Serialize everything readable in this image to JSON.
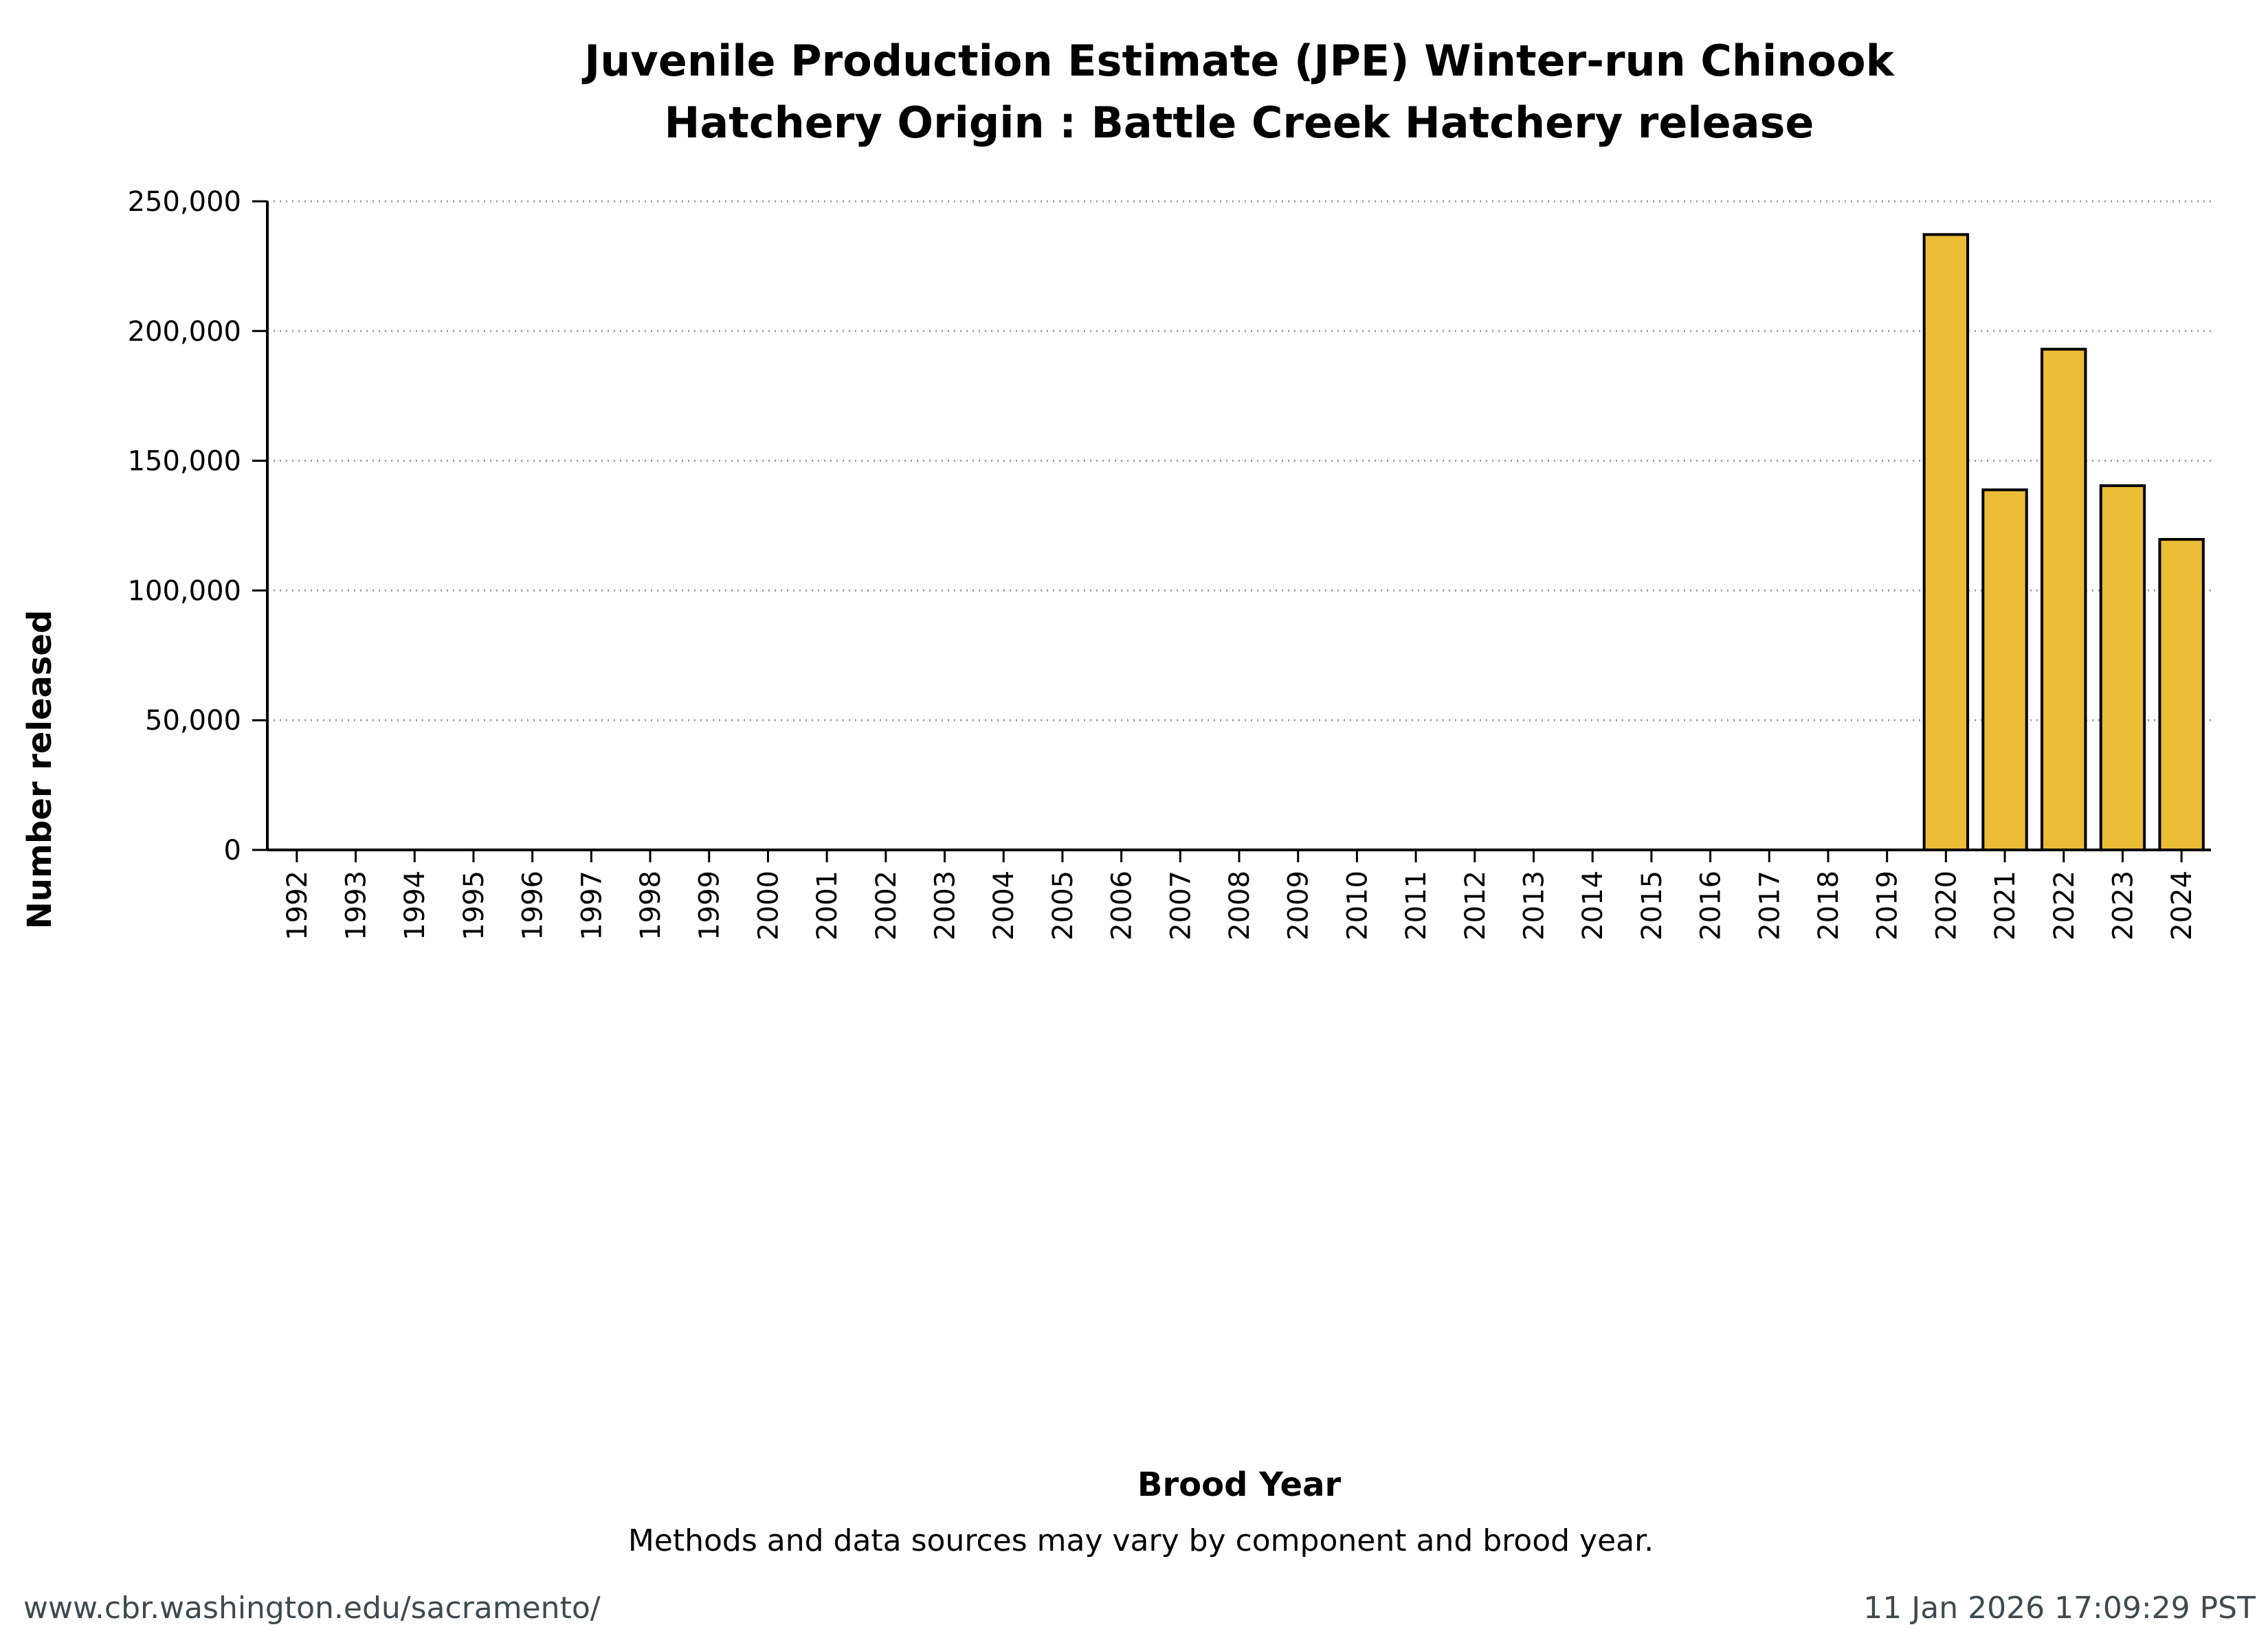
{
  "chart_data": {
    "type": "bar",
    "title": [
      "Juvenile Production Estimate (JPE) Winter-run Chinook",
      "Hatchery Origin : Battle Creek Hatchery release"
    ],
    "xlabel": "Brood Year",
    "ylabel": "Number released",
    "ylim": [
      0,
      250000
    ],
    "yticks": [
      0,
      50000,
      100000,
      150000,
      200000,
      250000
    ],
    "ytick_labels": [
      "0",
      "50,000",
      "100,000",
      "150,000",
      "200,000",
      "250,000"
    ],
    "grid": "horizontal dotted",
    "categories": [
      "1992",
      "1993",
      "1994",
      "1995",
      "1996",
      "1997",
      "1998",
      "1999",
      "2000",
      "2001",
      "2002",
      "2003",
      "2004",
      "2005",
      "2006",
      "2007",
      "2008",
      "2009",
      "2010",
      "2011",
      "2012",
      "2013",
      "2014",
      "2015",
      "2016",
      "2017",
      "2018",
      "2019",
      "2020",
      "2021",
      "2022",
      "2023",
      "2024"
    ],
    "values": [
      null,
      null,
      null,
      null,
      null,
      null,
      null,
      null,
      null,
      null,
      null,
      null,
      null,
      null,
      null,
      null,
      null,
      null,
      null,
      null,
      null,
      null,
      null,
      null,
      null,
      null,
      null,
      null,
      237200,
      138800,
      193000,
      140400,
      119700
    ],
    "bar_color": "#ebbc35",
    "bar_edge_color": "#000000"
  },
  "note": "Methods and data sources may vary by component and brood year.",
  "footer": {
    "url": "www.cbr.washington.edu/sacramento/",
    "timestamp": "11 Jan 2026 17:09:29 PST"
  }
}
